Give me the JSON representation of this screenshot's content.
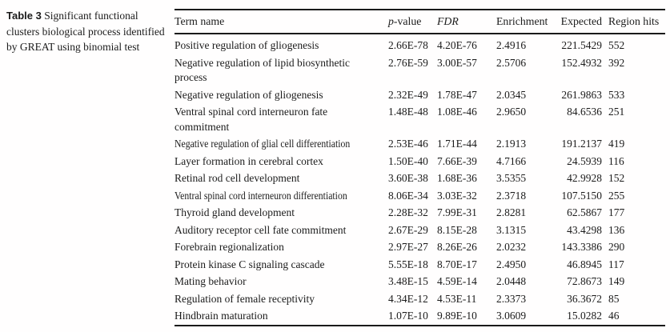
{
  "caption": {
    "label": "Table 3",
    "text": "Significant functional clusters biological process identified by GREAT using binomial test"
  },
  "table": {
    "columns": {
      "term": "Term name",
      "p_italic": "p",
      "p_rest": "-value",
      "fdr": "FDR",
      "enrichment": "Enrichment",
      "expected": "Expected",
      "region_hits": "Region hits"
    },
    "rows": [
      {
        "term": "Positive regulation of gliogenesis",
        "p": "2.66E-78",
        "fdr": "4.20E-76",
        "enrichment": "2.4916",
        "expected": "221.5429",
        "hits": "552"
      },
      {
        "term": "Negative regulation of lipid biosynthetic\nprocess",
        "p": "2.76E-59",
        "fdr": "3.00E-57",
        "enrichment": "2.5706",
        "expected": "152.4932",
        "hits": "392"
      },
      {
        "term": "Negative regulation of gliogenesis",
        "p": "2.32E-49",
        "fdr": "1.78E-47",
        "enrichment": "2.0345",
        "expected": "261.9863",
        "hits": "533"
      },
      {
        "term": "Ventral spinal cord interneuron fate\ncommitment",
        "p": "1.48E-48",
        "fdr": "1.08E-46",
        "enrichment": "2.9650",
        "expected": "84.6536",
        "hits": "251"
      },
      {
        "term": "Negative regulation of glial cell differentiation",
        "p": "2.53E-46",
        "fdr": "1.71E-44",
        "enrichment": "2.1913",
        "expected": "191.2137",
        "hits": "419"
      },
      {
        "term": "Layer formation in cerebral cortex",
        "p": "1.50E-40",
        "fdr": "7.66E-39",
        "enrichment": "4.7166",
        "expected": "24.5939",
        "hits": "116"
      },
      {
        "term": "Retinal rod cell development",
        "p": "3.60E-38",
        "fdr": "1.68E-36",
        "enrichment": "3.5355",
        "expected": "42.9928",
        "hits": "152"
      },
      {
        "term": "Ventral spinal cord interneuron differentiation",
        "p": "8.06E-34",
        "fdr": "3.03E-32",
        "enrichment": "2.3718",
        "expected": "107.5150",
        "hits": "255"
      },
      {
        "term": "Thyroid gland development",
        "p": "2.28E-32",
        "fdr": "7.99E-31",
        "enrichment": "2.8281",
        "expected": "62.5867",
        "hits": "177"
      },
      {
        "term": "Auditory receptor cell fate commitment",
        "p": "2.67E-29",
        "fdr": "8.15E-28",
        "enrichment": "3.1315",
        "expected": "43.4298",
        "hits": "136"
      },
      {
        "term": "Forebrain regionalization",
        "p": "2.97E-27",
        "fdr": "8.26E-26",
        "enrichment": "2.0232",
        "expected": "143.3386",
        "hits": "290"
      },
      {
        "term": "Protein kinase C signaling cascade",
        "p": "5.55E-18",
        "fdr": "8.70E-17",
        "enrichment": "2.4950",
        "expected": "46.8945",
        "hits": "117"
      },
      {
        "term": "Mating behavior",
        "p": "3.48E-15",
        "fdr": "4.59E-14",
        "enrichment": "2.0448",
        "expected": "72.8673",
        "hits": "149"
      },
      {
        "term": "Regulation of female receptivity",
        "p": "4.34E-12",
        "fdr": "4.53E-11",
        "enrichment": "2.3373",
        "expected": "36.3672",
        "hits": "85"
      },
      {
        "term": "Hindbrain maturation",
        "p": "1.07E-10",
        "fdr": "9.89E-10",
        "enrichment": "3.0609",
        "expected": "15.0282",
        "hits": "46"
      }
    ]
  },
  "colors": {
    "text": "#1b1b1b",
    "rule": "#1a1a1a",
    "background": "#ffffff"
  }
}
